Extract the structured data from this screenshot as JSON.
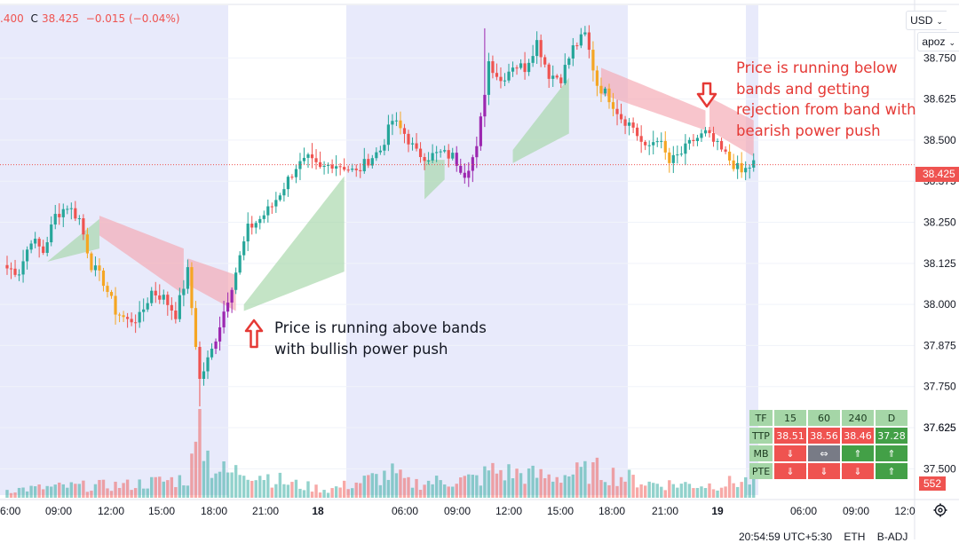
{
  "header": {
    "ohlc_open_partial": ".400",
    "close_label": "C",
    "close_value": "38.425",
    "change": "−0.015 (−0.04%)"
  },
  "controls": {
    "currency": "USD",
    "account": "apoz"
  },
  "chart_data": {
    "type": "candlestick",
    "y_ticks": [
      37.5,
      37.625,
      37.75,
      37.875,
      38.0,
      38.125,
      38.25,
      38.375,
      38.5,
      38.625,
      38.75
    ],
    "y_tick_labels": [
      "37.500",
      "37.625",
      "37.750",
      "37.875",
      "38.000",
      "38.125",
      "38.250",
      "38.375",
      "38.500",
      "38.625",
      "38.750"
    ],
    "ylim": [
      37.42,
      38.91
    ],
    "x_labels": [
      "6:00",
      "09:00",
      "12:00",
      "15:00",
      "18:00",
      "21:00",
      "18",
      "06:00",
      "09:00",
      "12:00",
      "15:00",
      "18:00",
      "21:00",
      "19",
      "06:00",
      "09:00",
      "12:0"
    ],
    "last_price": "38.425",
    "last_price_value": 38.425,
    "last_volume": "552",
    "session_shading": "light-blue",
    "anchors": [
      [
        0,
        38.11
      ],
      [
        3,
        38.1
      ],
      [
        6,
        38.2
      ],
      [
        9,
        38.16
      ],
      [
        12,
        38.27
      ],
      [
        15,
        38.3
      ],
      [
        18,
        38.26
      ],
      [
        21,
        38.12
      ],
      [
        24,
        38.07
      ],
      [
        27,
        37.98
      ],
      [
        30,
        37.95
      ],
      [
        33,
        37.96
      ],
      [
        36,
        38.04
      ],
      [
        39,
        38.02
      ],
      [
        42,
        37.97
      ],
      [
        45,
        38.1
      ],
      [
        48,
        37.77
      ],
      [
        51,
        37.86
      ],
      [
        54,
        37.98
      ],
      [
        57,
        38.1
      ],
      [
        60,
        38.23
      ],
      [
        63,
        38.26
      ],
      [
        66,
        38.3
      ],
      [
        69,
        38.36
      ],
      [
        72,
        38.42
      ],
      [
        75,
        38.44
      ],
      [
        78,
        38.41
      ],
      [
        81,
        38.43
      ],
      [
        84,
        38.42
      ],
      [
        87,
        38.4
      ],
      [
        90,
        38.44
      ],
      [
        93,
        38.47
      ],
      [
        96,
        38.56
      ],
      [
        99,
        38.52
      ],
      [
        102,
        38.46
      ],
      [
        105,
        38.45
      ],
      [
        108,
        38.46
      ],
      [
        111,
        38.45
      ],
      [
        114,
        38.4
      ],
      [
        117,
        38.47
      ],
      [
        120,
        38.74
      ],
      [
        123,
        38.68
      ],
      [
        126,
        38.73
      ],
      [
        129,
        38.72
      ],
      [
        132,
        38.8
      ],
      [
        135,
        38.7
      ],
      [
        138,
        38.69
      ],
      [
        141,
        38.78
      ],
      [
        144,
        38.82
      ],
      [
        147,
        38.67
      ],
      [
        150,
        38.63
      ],
      [
        153,
        38.57
      ],
      [
        156,
        38.54
      ],
      [
        159,
        38.47
      ],
      [
        162,
        38.51
      ],
      [
        165,
        38.43
      ],
      [
        168,
        38.46
      ],
      [
        171,
        38.5
      ],
      [
        174,
        38.52
      ],
      [
        177,
        38.48
      ],
      [
        180,
        38.44
      ],
      [
        183,
        38.4
      ],
      [
        186,
        38.43
      ]
    ],
    "volume_profile": [
      [
        0,
        10
      ],
      [
        15,
        14
      ],
      [
        30,
        16
      ],
      [
        45,
        24
      ],
      [
        48,
        78
      ],
      [
        51,
        40
      ],
      [
        55,
        30
      ],
      [
        60,
        36
      ],
      [
        70,
        18
      ],
      [
        80,
        10
      ],
      [
        96,
        30
      ],
      [
        100,
        18
      ],
      [
        118,
        24
      ],
      [
        120,
        34
      ],
      [
        135,
        26
      ],
      [
        147,
        34
      ],
      [
        160,
        18
      ],
      [
        175,
        16
      ],
      [
        186,
        22
      ]
    ]
  },
  "annotations": {
    "bullish_lines": [
      "Price is running above bands",
      "with bullish power push"
    ],
    "bearish_lines": [
      "Price is running below",
      "bands and getting",
      "rejection from band with",
      "bearish power push"
    ]
  },
  "table": {
    "headers": [
      "TF",
      "15",
      "60",
      "240",
      "D"
    ],
    "rows": [
      {
        "label": "TTP",
        "cells": [
          {
            "text": "38.51",
            "state": "red"
          },
          {
            "text": "38.56",
            "state": "red"
          },
          {
            "text": "38.46",
            "state": "red"
          },
          {
            "text": "37.28",
            "state": "grn"
          }
        ]
      },
      {
        "label": "MB",
        "cells": [
          {
            "text": "⇓",
            "state": "red"
          },
          {
            "text": "⇔",
            "state": "gry"
          },
          {
            "text": "⇑",
            "state": "grn"
          },
          {
            "text": "⇑",
            "state": "grn"
          }
        ]
      },
      {
        "label": "PTE",
        "cells": [
          {
            "text": "⇓",
            "state": "red"
          },
          {
            "text": "⇓",
            "state": "red"
          },
          {
            "text": "⇓",
            "state": "red"
          },
          {
            "text": "⇑",
            "state": "grn"
          }
        ]
      }
    ]
  },
  "status": {
    "time": "20:54:59 UTC+5:30",
    "session": "ETH",
    "adj": "B-ADJ"
  },
  "colors": {
    "up": "#26a69a",
    "down": "#ef5350",
    "orange": "#f5a623",
    "purple": "#9c27b0",
    "bull_band": "#a5d6a7",
    "bear_band": "#f4a6b0",
    "session": "#e8eafb"
  }
}
